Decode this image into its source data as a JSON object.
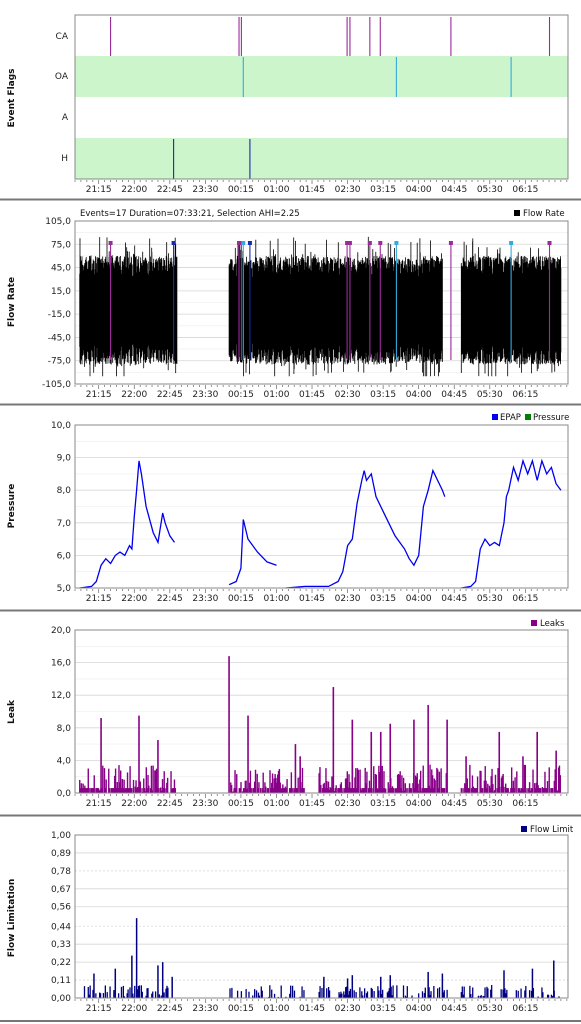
{
  "x_ticks": [
    "21:15",
    "22:00",
    "22:45",
    "23:30",
    "00:15",
    "01:00",
    "01:45",
    "02:30",
    "03:15",
    "04:00",
    "04:45",
    "05:30",
    "06:15"
  ],
  "chart_data": [
    {
      "type": "event-flags",
      "ylabel": "Event Flags",
      "rows": [
        "CA",
        "OA",
        "A",
        "H"
      ],
      "events": {
        "CA": [
          21.5,
          24.21,
          24.26,
          26.49,
          26.55,
          26.97,
          27.19,
          28.68,
          30.76
        ],
        "OA": [
          24.3,
          27.53,
          29.95
        ],
        "A": [],
        "H": [
          22.83,
          24.44
        ]
      }
    },
    {
      "type": "line",
      "ylabel": "Flow Rate",
      "header": "Events=17 Duration=07:33:21, Selection AHI=2.25",
      "legend": [
        {
          "name": "Flow Rate",
          "color": "#000000"
        }
      ],
      "yticks": [
        "105,0",
        "75,0",
        "45,0",
        "15,0",
        "-15,0",
        "-45,0",
        "-75,0",
        "-105,0"
      ],
      "ylim": [
        -105,
        105
      ],
      "segments": [
        [
          20.85,
          22.9
        ],
        [
          24.0,
          28.5
        ],
        [
          28.9,
          31.0
        ]
      ],
      "event_markers": {
        "CA": [
          21.5,
          24.21,
          24.26,
          26.49,
          26.55,
          26.97,
          27.19,
          28.68,
          30.76
        ],
        "OA": [
          24.3,
          27.53,
          29.95
        ],
        "H": [
          22.83,
          24.44
        ]
      }
    },
    {
      "type": "line",
      "ylabel": "Pressure",
      "legend": [
        {
          "name": "EPAP",
          "color": "#0000ee"
        },
        {
          "name": "Pressure",
          "color": "#008000"
        }
      ],
      "yticks": [
        "10,0",
        "9,0",
        "8,0",
        "7,0",
        "6,0",
        "5,0"
      ],
      "ylim": [
        5,
        10
      ],
      "series": [
        {
          "name": "EPAP",
          "points": [
            [
              20.85,
              5.0
            ],
            [
              21.1,
              5.05
            ],
            [
              21.2,
              5.2
            ],
            [
              21.3,
              5.7
            ],
            [
              21.4,
              5.9
            ],
            [
              21.5,
              5.75
            ],
            [
              21.6,
              6.0
            ],
            [
              21.7,
              6.1
            ],
            [
              21.8,
              6.0
            ],
            [
              21.9,
              6.3
            ],
            [
              21.95,
              6.2
            ],
            [
              22.0,
              7.2
            ],
            [
              22.05,
              8.0
            ],
            [
              22.1,
              8.9
            ],
            [
              22.15,
              8.5
            ],
            [
              22.25,
              7.5
            ],
            [
              22.4,
              6.7
            ],
            [
              22.5,
              6.4
            ],
            [
              22.6,
              7.3
            ],
            [
              22.65,
              7.0
            ],
            [
              22.75,
              6.6
            ],
            [
              22.85,
              6.4
            ]
          ]
        },
        {
          "name": "EPAP",
          "points": [
            [
              24.0,
              5.1
            ],
            [
              24.15,
              5.2
            ],
            [
              24.25,
              5.6
            ],
            [
              24.3,
              7.1
            ],
            [
              24.4,
              6.5
            ],
            [
              24.6,
              6.1
            ],
            [
              24.8,
              5.8
            ],
            [
              25.0,
              5.7
            ]
          ]
        },
        {
          "name": "EPAP",
          "points": [
            [
              25.2,
              5.0
            ],
            [
              25.6,
              5.05
            ],
            [
              26.1,
              5.05
            ],
            [
              26.3,
              5.2
            ],
            [
              26.4,
              5.5
            ],
            [
              26.5,
              6.3
            ],
            [
              26.6,
              6.5
            ],
            [
              26.7,
              7.6
            ],
            [
              26.8,
              8.3
            ],
            [
              26.85,
              8.6
            ],
            [
              26.9,
              8.3
            ],
            [
              27.0,
              8.5
            ],
            [
              27.1,
              7.8
            ],
            [
              27.3,
              7.2
            ],
            [
              27.5,
              6.6
            ],
            [
              27.7,
              6.2
            ],
            [
              27.8,
              5.9
            ],
            [
              27.9,
              5.7
            ],
            [
              28.0,
              6.0
            ],
            [
              28.1,
              7.5
            ],
            [
              28.2,
              8.0
            ],
            [
              28.3,
              8.6
            ],
            [
              28.4,
              8.3
            ],
            [
              28.5,
              8.0
            ],
            [
              28.55,
              7.8
            ]
          ]
        },
        {
          "name": "EPAP",
          "points": [
            [
              28.9,
              5.0
            ],
            [
              29.1,
              5.05
            ],
            [
              29.2,
              5.2
            ],
            [
              29.3,
              6.2
            ],
            [
              29.4,
              6.5
            ],
            [
              29.5,
              6.3
            ],
            [
              29.6,
              6.4
            ],
            [
              29.7,
              6.3
            ],
            [
              29.8,
              7.0
            ],
            [
              29.85,
              7.8
            ],
            [
              29.9,
              8.0
            ],
            [
              30.0,
              8.7
            ],
            [
              30.1,
              8.3
            ],
            [
              30.2,
              8.9
            ],
            [
              30.3,
              8.5
            ],
            [
              30.4,
              8.9
            ],
            [
              30.5,
              8.3
            ],
            [
              30.6,
              8.9
            ],
            [
              30.7,
              8.5
            ],
            [
              30.8,
              8.7
            ],
            [
              30.9,
              8.2
            ],
            [
              31.0,
              8.0
            ]
          ]
        }
      ]
    },
    {
      "type": "bar",
      "ylabel": "Leak",
      "legend": [
        {
          "name": "Leaks",
          "color": "#880088"
        }
      ],
      "yticks": [
        "20,0",
        "16,0",
        "12,0",
        "8,0",
        "4,0",
        "0,0"
      ],
      "ylim": [
        0,
        20
      ],
      "spikes": [
        [
          21.3,
          9.2
        ],
        [
          22.1,
          9.5
        ],
        [
          22.5,
          6.5
        ],
        [
          24.0,
          16.8
        ],
        [
          24.4,
          9.5
        ],
        [
          25.4,
          6.0
        ],
        [
          25.5,
          4.5
        ],
        [
          26.2,
          13.0
        ],
        [
          26.6,
          9.0
        ],
        [
          27.0,
          7.5
        ],
        [
          27.2,
          7.5
        ],
        [
          27.4,
          8.5
        ],
        [
          27.9,
          9.0
        ],
        [
          28.2,
          10.8
        ],
        [
          28.6,
          9.0
        ],
        [
          29.0,
          4.5
        ],
        [
          29.7,
          7.5
        ],
        [
          30.2,
          4.5
        ],
        [
          30.5,
          7.5
        ],
        [
          30.9,
          5.2
        ]
      ]
    },
    {
      "type": "bar",
      "ylabel": "Flow Limitation",
      "legend": [
        {
          "name": "Flow Limit",
          "color": "#000080"
        }
      ],
      "yticks": [
        "1,00",
        "0,89",
        "0,78",
        "0,67",
        "0,56",
        "0,44",
        "0,33",
        "0,22",
        "0,11",
        "0,00"
      ],
      "ylim": [
        0,
        1
      ],
      "spikes": [
        [
          21.15,
          0.15
        ],
        [
          21.6,
          0.18
        ],
        [
          21.95,
          0.26
        ],
        [
          22.05,
          0.49
        ],
        [
          22.5,
          0.2
        ],
        [
          22.6,
          0.22
        ],
        [
          22.8,
          0.13
        ],
        [
          26.0,
          0.13
        ],
        [
          26.5,
          0.12
        ],
        [
          26.6,
          0.14
        ],
        [
          27.2,
          0.13
        ],
        [
          27.4,
          0.14
        ],
        [
          28.2,
          0.16
        ],
        [
          28.5,
          0.15
        ],
        [
          29.8,
          0.17
        ],
        [
          30.4,
          0.18
        ],
        [
          30.85,
          0.23
        ]
      ]
    }
  ]
}
